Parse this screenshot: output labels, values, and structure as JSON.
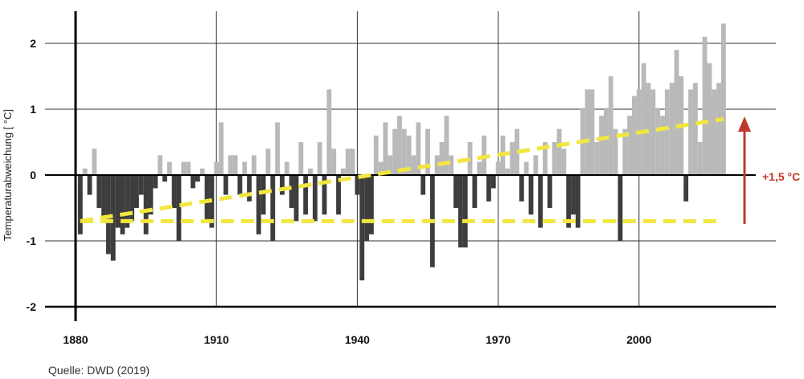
{
  "chart_data": {
    "type": "bar",
    "ylabel": "Temperaturabweichung [ °C]",
    "ylim": [
      -2,
      2.4
    ],
    "xlim": [
      1880,
      2025
    ],
    "x_ticks": [
      "1880",
      "1910",
      "1940",
      "1970",
      "2000"
    ],
    "y_ticks": [
      "2",
      "1",
      "0",
      "-1",
      "-2"
    ],
    "colors": {
      "positive": "#b9b9b9",
      "negative": "#3d3d3d",
      "trend": "#f2e640",
      "arrow": "#c0392b"
    },
    "x": [
      1881,
      1882,
      1883,
      1884,
      1885,
      1886,
      1887,
      1888,
      1889,
      1890,
      1891,
      1892,
      1893,
      1894,
      1895,
      1896,
      1897,
      1898,
      1899,
      1900,
      1901,
      1902,
      1903,
      1904,
      1905,
      1906,
      1907,
      1908,
      1909,
      1910,
      1911,
      1912,
      1913,
      1914,
      1915,
      1916,
      1917,
      1918,
      1919,
      1920,
      1921,
      1922,
      1923,
      1924,
      1925,
      1926,
      1927,
      1928,
      1929,
      1930,
      1931,
      1932,
      1933,
      1934,
      1935,
      1936,
      1937,
      1938,
      1939,
      1940,
      1941,
      1942,
      1943,
      1944,
      1945,
      1946,
      1947,
      1948,
      1949,
      1950,
      1951,
      1952,
      1953,
      1954,
      1955,
      1956,
      1957,
      1958,
      1959,
      1960,
      1961,
      1962,
      1963,
      1964,
      1965,
      1966,
      1967,
      1968,
      1969,
      1970,
      1971,
      1972,
      1973,
      1974,
      1975,
      1976,
      1977,
      1978,
      1979,
      1980,
      1981,
      1982,
      1983,
      1984,
      1985,
      1986,
      1987,
      1988,
      1989,
      1990,
      1991,
      1992,
      1993,
      1994,
      1995,
      1996,
      1997,
      1998,
      1999,
      2000,
      2001,
      2002,
      2003,
      2004,
      2005,
      2006,
      2007,
      2008,
      2009,
      2010,
      2011,
      2012,
      2013,
      2014,
      2015,
      2016,
      2017,
      2018
    ],
    "values": [
      -0.9,
      0.1,
      -0.3,
      0.4,
      -0.5,
      -0.7,
      -1.2,
      -1.3,
      -0.8,
      -0.9,
      -0.8,
      -0.7,
      -0.5,
      -0.3,
      -0.9,
      -0.6,
      -0.2,
      0.3,
      -0.1,
      0.2,
      -0.5,
      -1.0,
      0.2,
      0.2,
      -0.2,
      -0.1,
      0.1,
      -0.7,
      -0.8,
      0.2,
      0.8,
      -0.3,
      0.3,
      0.3,
      -0.3,
      0.2,
      -0.4,
      0.3,
      -0.9,
      -0.6,
      0.4,
      -1.0,
      0.8,
      -0.3,
      0.2,
      -0.5,
      -0.7,
      0.5,
      -0.6,
      0.1,
      -0.7,
      0.5,
      -0.6,
      1.3,
      0.4,
      -0.6,
      0.1,
      0.4,
      0.4,
      -0.3,
      -1.6,
      -1.0,
      -0.9,
      0.6,
      0.2,
      0.8,
      0.3,
      0.7,
      0.9,
      0.7,
      0.6,
      0.3,
      0.8,
      -0.3,
      0.7,
      -1.4,
      0.3,
      0.5,
      0.9,
      0.3,
      -0.5,
      -1.1,
      -1.1,
      0.5,
      -0.5,
      0.2,
      0.6,
      -0.4,
      -0.2,
      0.2,
      0.6,
      0.1,
      0.5,
      0.7,
      -0.4,
      0.2,
      -0.6,
      0.3,
      -0.8,
      0.5,
      -0.5,
      0.5,
      0.7,
      0.4,
      -0.8,
      -0.6,
      -0.8,
      1.0,
      1.3,
      1.3,
      0.5,
      0.9,
      1.0,
      1.5,
      0.7,
      -1.0,
      0.7,
      0.9,
      1.2,
      1.3,
      1.7,
      1.4,
      1.3,
      1.0,
      0.9,
      1.3,
      1.4,
      1.9,
      1.5,
      -0.4,
      1.3,
      1.4,
      0.5,
      2.1,
      1.7,
      1.3,
      1.4,
      2.3
    ],
    "trend_1881": -0.7,
    "trend_2018": 0.85,
    "baseline_1881": -0.7,
    "annotation": "+1,5 °C"
  },
  "source": "Quelle: DWD (2019)"
}
